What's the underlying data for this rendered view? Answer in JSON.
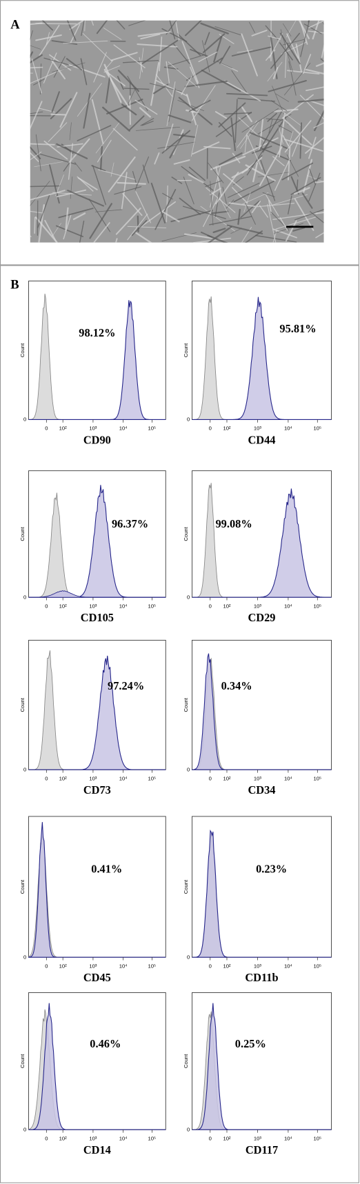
{
  "panels": {
    "A": {
      "label": "A"
    },
    "B": {
      "label": "B",
      "y_axis_label": "Count",
      "y_tick": "0",
      "x_ticks": [
        "0",
        "10²",
        "10³",
        "10⁴",
        "10⁵"
      ],
      "histograms": [
        {
          "marker": "CD90",
          "percent": "98.12%"
        },
        {
          "marker": "CD44",
          "percent": "95.81%"
        },
        {
          "marker": "CD105",
          "percent": "96.37%"
        },
        {
          "marker": "CD29",
          "percent": "99.08%"
        },
        {
          "marker": "CD73",
          "percent": "97.24%"
        },
        {
          "marker": "CD34",
          "percent": "0.34%"
        },
        {
          "marker": "CD45",
          "percent": "0.41%"
        },
        {
          "marker": "CD11b",
          "percent": "0.23%"
        },
        {
          "marker": "CD14",
          "percent": "0.46%"
        },
        {
          "marker": "CD117",
          "percent": "0.25%"
        }
      ]
    }
  }
}
